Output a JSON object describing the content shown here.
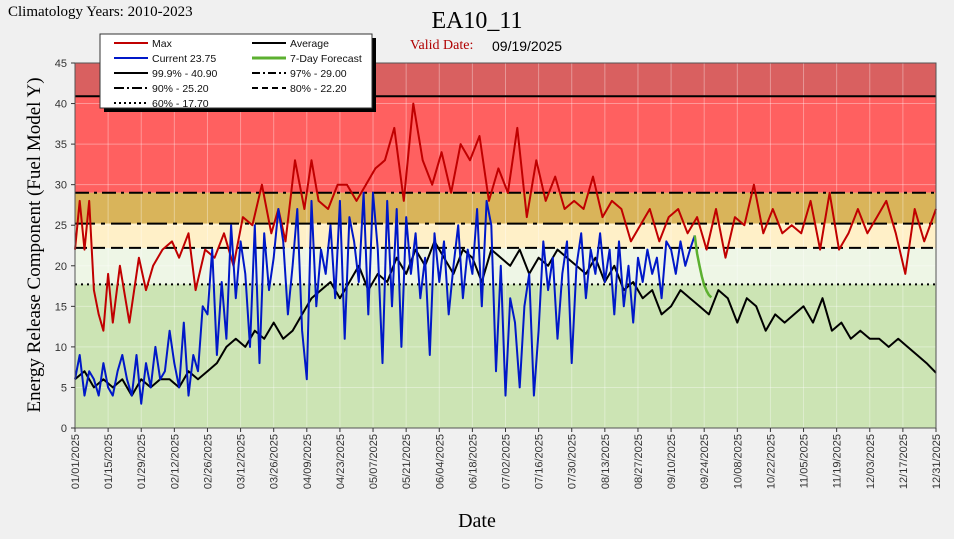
{
  "header": {
    "climatology": "Climatology Years: 2010-2023",
    "title": "EA10_11",
    "valid_label": "Valid Date:",
    "valid_date": "09/19/2025"
  },
  "colors": {
    "max": "#c00000",
    "current": "#0018c8",
    "average": "#000000",
    "forecast": "#5cb030",
    "band_extreme": "#d96060",
    "band_very_high": "#ff6060",
    "band_high": "#d9b45a",
    "band_elevated": "#fff0c8",
    "band_moderate": "#eef6e6",
    "band_low": "#cce4b4"
  },
  "chart_data": {
    "type": "line",
    "title": "EA10_11",
    "xlabel": "Date",
    "ylabel": "Energy Release Component (Fuel Model Y)",
    "ylim": [
      0,
      45
    ],
    "yticks": [
      0,
      5,
      10,
      15,
      20,
      25,
      30,
      35,
      40,
      45
    ],
    "x_tick_labels": [
      "01/01/2025",
      "01/15/2025",
      "01/29/2025",
      "02/12/2025",
      "02/26/2025",
      "03/12/2025",
      "03/26/2025",
      "04/09/2025",
      "04/23/2025",
      "05/07/2025",
      "05/21/2025",
      "06/04/2025",
      "06/18/2025",
      "07/02/2025",
      "07/16/2025",
      "07/30/2025",
      "08/13/2025",
      "08/27/2025",
      "09/10/2025",
      "09/24/2025",
      "10/08/2025",
      "10/22/2025",
      "11/05/2025",
      "11/19/2025",
      "12/03/2025",
      "12/17/2025",
      "12/31/2025"
    ],
    "x_tick_days": [
      1,
      15,
      29,
      43,
      57,
      71,
      85,
      99,
      113,
      127,
      141,
      155,
      169,
      183,
      197,
      211,
      225,
      239,
      253,
      267,
      281,
      295,
      309,
      323,
      337,
      351,
      365
    ],
    "percentiles": [
      {
        "name": "99.9%",
        "value": 40.9,
        "label": "99.9% - 40.90",
        "style": "solid"
      },
      {
        "name": "97%",
        "value": 29.0,
        "label": "97% - 29.00",
        "style": "dashdot"
      },
      {
        "name": "90%",
        "value": 25.2,
        "label": "90% - 25.20",
        "style": "longdashdot"
      },
      {
        "name": "80%",
        "value": 22.2,
        "label": "80% - 22.20",
        "style": "dashed"
      },
      {
        "name": "60%",
        "value": 17.7,
        "label": "60% - 17.70",
        "style": "dotted"
      }
    ],
    "legend": {
      "max": "Max",
      "average": "Average",
      "current": "Current  23.75",
      "forecast": "7-Day Forecast",
      "position": "top-left"
    },
    "series": [
      {
        "name": "Max",
        "x": [
          1,
          3,
          5,
          7,
          9,
          11,
          13,
          15,
          17,
          20,
          24,
          28,
          31,
          34,
          38,
          42,
          45,
          49,
          52,
          56,
          60,
          64,
          68,
          72,
          76,
          80,
          84,
          87,
          90,
          94,
          98,
          101,
          104,
          108,
          112,
          116,
          120,
          124,
          128,
          132,
          136,
          140,
          144,
          148,
          152,
          156,
          160,
          164,
          168,
          172,
          176,
          180,
          184,
          188,
          192,
          196,
          200,
          204,
          208,
          212,
          216,
          220,
          224,
          228,
          232,
          236,
          240,
          244,
          248,
          252,
          256,
          260,
          264,
          268,
          272,
          276,
          280,
          284,
          288,
          292,
          296,
          300,
          304,
          308,
          312,
          316,
          320,
          324,
          328,
          332,
          336,
          340,
          344,
          348,
          352,
          356,
          360,
          365
        ],
        "y": [
          22,
          28,
          22,
          28,
          17,
          14,
          12,
          19,
          13,
          20,
          13,
          21,
          17,
          20,
          22,
          23,
          21,
          24,
          17,
          22,
          21,
          24,
          20,
          26,
          25,
          30,
          24,
          27,
          23,
          33,
          27,
          33,
          28,
          27,
          30,
          30,
          28,
          30,
          32,
          33,
          37,
          28,
          40,
          33,
          30,
          34,
          29,
          35,
          33,
          36,
          28,
          32,
          29,
          37,
          26,
          33,
          28,
          31,
          27,
          28,
          27,
          31,
          26,
          28,
          27,
          23,
          25,
          27,
          23,
          26,
          27,
          24,
          26,
          22,
          27,
          21,
          26,
          25,
          30,
          24,
          27,
          24,
          25,
          24,
          28,
          22,
          29,
          22,
          24,
          27,
          24,
          26,
          28,
          24,
          19,
          27,
          23,
          27
        ]
      },
      {
        "name": "Current",
        "x": [
          1,
          3,
          5,
          7,
          9,
          11,
          13,
          15,
          17,
          19,
          21,
          23,
          25,
          27,
          29,
          31,
          33,
          35,
          37,
          39,
          41,
          43,
          45,
          47,
          49,
          51,
          53,
          55,
          57,
          59,
          61,
          63,
          65,
          67,
          69,
          71,
          73,
          75,
          77,
          79,
          81,
          83,
          85,
          87,
          89,
          91,
          93,
          95,
          97,
          99,
          101,
          103,
          105,
          107,
          109,
          111,
          113,
          115,
          117,
          119,
          121,
          123,
          125,
          127,
          129,
          131,
          133,
          135,
          137,
          139,
          141,
          143,
          145,
          147,
          149,
          151,
          153,
          155,
          157,
          159,
          161,
          163,
          165,
          167,
          169,
          171,
          173,
          175,
          177,
          179,
          181,
          183,
          185,
          187,
          189,
          191,
          193,
          195,
          197,
          199,
          201,
          203,
          205,
          207,
          209,
          211,
          213,
          215,
          217,
          219,
          221,
          223,
          225,
          227,
          229,
          231,
          233,
          235,
          237,
          239,
          241,
          243,
          245,
          247,
          249,
          251,
          253,
          255,
          257,
          259,
          261,
          263
        ],
        "y": [
          6,
          9,
          4,
          7,
          6,
          4,
          8,
          5,
          4,
          7,
          9,
          6,
          4,
          9,
          3,
          8,
          5,
          10,
          6,
          7,
          12,
          8,
          5,
          13,
          4,
          9,
          7,
          15,
          14,
          22,
          9,
          18,
          11,
          25,
          16,
          23,
          19,
          10,
          25,
          8,
          24,
          17,
          21,
          27,
          23,
          14,
          20,
          27,
          12,
          6,
          28,
          15,
          22,
          19,
          25,
          16,
          28,
          11,
          26,
          23,
          18,
          29,
          14,
          29,
          22,
          8,
          28,
          15,
          27,
          10,
          26,
          19,
          24,
          16,
          21,
          9,
          24,
          18,
          23,
          14,
          20,
          25,
          16,
          22,
          19,
          27,
          15,
          28,
          25,
          7,
          20,
          4,
          16,
          13,
          5,
          15,
          19,
          4,
          12,
          23,
          17,
          21,
          11,
          19,
          23,
          8,
          20,
          24,
          16,
          22,
          19,
          24,
          18,
          22,
          14,
          23,
          15,
          20,
          13,
          21,
          18,
          22,
          19,
          21,
          16,
          23,
          22,
          19,
          23,
          20,
          22,
          23.75
        ]
      },
      {
        "name": "Average",
        "x": [
          1,
          5,
          9,
          13,
          17,
          21,
          25,
          29,
          33,
          37,
          41,
          45,
          49,
          53,
          57,
          61,
          65,
          69,
          73,
          77,
          81,
          85,
          89,
          93,
          97,
          101,
          105,
          109,
          113,
          117,
          121,
          125,
          129,
          133,
          137,
          141,
          145,
          149,
          153,
          157,
          161,
          165,
          169,
          173,
          177,
          181,
          185,
          189,
          193,
          197,
          201,
          205,
          209,
          213,
          217,
          221,
          225,
          229,
          233,
          237,
          241,
          245,
          249,
          253,
          257,
          261,
          265,
          269,
          273,
          277,
          281,
          285,
          289,
          293,
          297,
          301,
          305,
          309,
          313,
          317,
          321,
          325,
          329,
          333,
          337,
          341,
          345,
          349,
          353,
          357,
          361,
          365
        ],
        "y": [
          6,
          7,
          5,
          6,
          5,
          6,
          4,
          6,
          5,
          6,
          6,
          5,
          7,
          6,
          7,
          8,
          10,
          11,
          10,
          12,
          11,
          13,
          11,
          12,
          14,
          16,
          17,
          18,
          16,
          18,
          20,
          17,
          19,
          18,
          21,
          19,
          22,
          20,
          23,
          21,
          19,
          22,
          21,
          18,
          22,
          21,
          20,
          22,
          19,
          21,
          20,
          22,
          21,
          20,
          19,
          21,
          18,
          20,
          17,
          18,
          16,
          17,
          14,
          15,
          17,
          16,
          15,
          14,
          17,
          16,
          13,
          16,
          15,
          12,
          14,
          13,
          14,
          15,
          13,
          16,
          12,
          13,
          11,
          12,
          11,
          11,
          10,
          11,
          10,
          9,
          8,
          6.8
        ]
      },
      {
        "name": "7-Day Forecast",
        "x": [
          263,
          264,
          265,
          266,
          267,
          268,
          269,
          270
        ],
        "y": [
          23.75,
          21.5,
          20,
          18.7,
          17.6,
          16.9,
          16.4,
          16.1
        ]
      }
    ]
  }
}
